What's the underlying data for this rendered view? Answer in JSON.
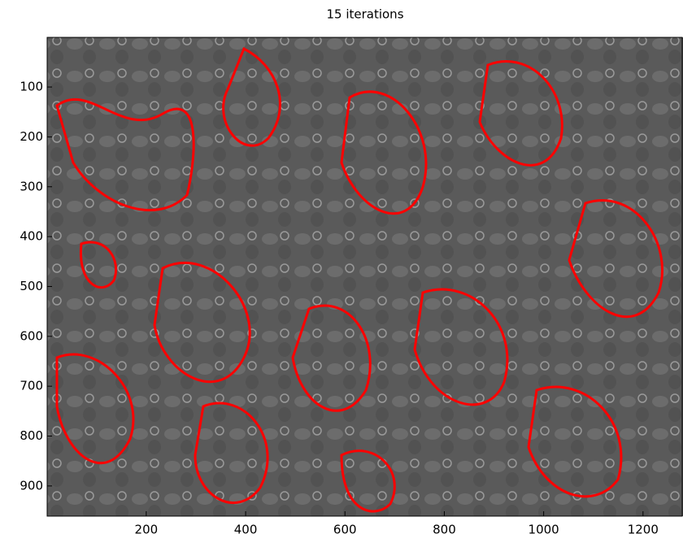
{
  "chart_data": {
    "type": "image",
    "title": "15 iterations",
    "xlim": [
      0.5,
      1280.5
    ],
    "ylim": [
      0.5,
      960.5
    ],
    "y_direction": "reverse",
    "xticks": [
      200,
      400,
      600,
      800,
      1000,
      1200
    ],
    "yticks": [
      100,
      200,
      300,
      400,
      500,
      600,
      700,
      800,
      900
    ],
    "contour_color": "#ff0000"
  }
}
